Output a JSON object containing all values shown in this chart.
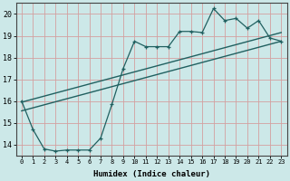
{
  "xlabel": "Humidex (Indice chaleur)",
  "ylabel": "",
  "bg_color": "#cce8e8",
  "grid_color": "#d4a0a0",
  "line_color": "#206060",
  "xlim": [
    -0.5,
    23.5
  ],
  "ylim": [
    13.5,
    20.5
  ],
  "xticks": [
    0,
    1,
    2,
    3,
    4,
    5,
    6,
    7,
    8,
    9,
    10,
    11,
    12,
    13,
    14,
    15,
    16,
    17,
    18,
    19,
    20,
    21,
    22,
    23
  ],
  "yticks": [
    14,
    15,
    16,
    17,
    18,
    19,
    20
  ],
  "line1_x": [
    0,
    1,
    2,
    3,
    4,
    5,
    6,
    7,
    8,
    9,
    10,
    11,
    12,
    13,
    14,
    15,
    16,
    17,
    18,
    19,
    20,
    21,
    22,
    23
  ],
  "line1_y": [
    16.0,
    14.7,
    13.8,
    13.7,
    13.75,
    13.75,
    13.75,
    14.3,
    15.85,
    17.5,
    18.75,
    18.5,
    18.5,
    18.5,
    19.2,
    19.2,
    19.15,
    20.25,
    19.7,
    19.8,
    19.35,
    19.7,
    18.9,
    18.75
  ],
  "line2_x": [
    0,
    23
  ],
  "line2_y": [
    15.55,
    18.75
  ],
  "line3_x": [
    0,
    23
  ],
  "line3_y": [
    15.95,
    19.15
  ],
  "marker": "+"
}
